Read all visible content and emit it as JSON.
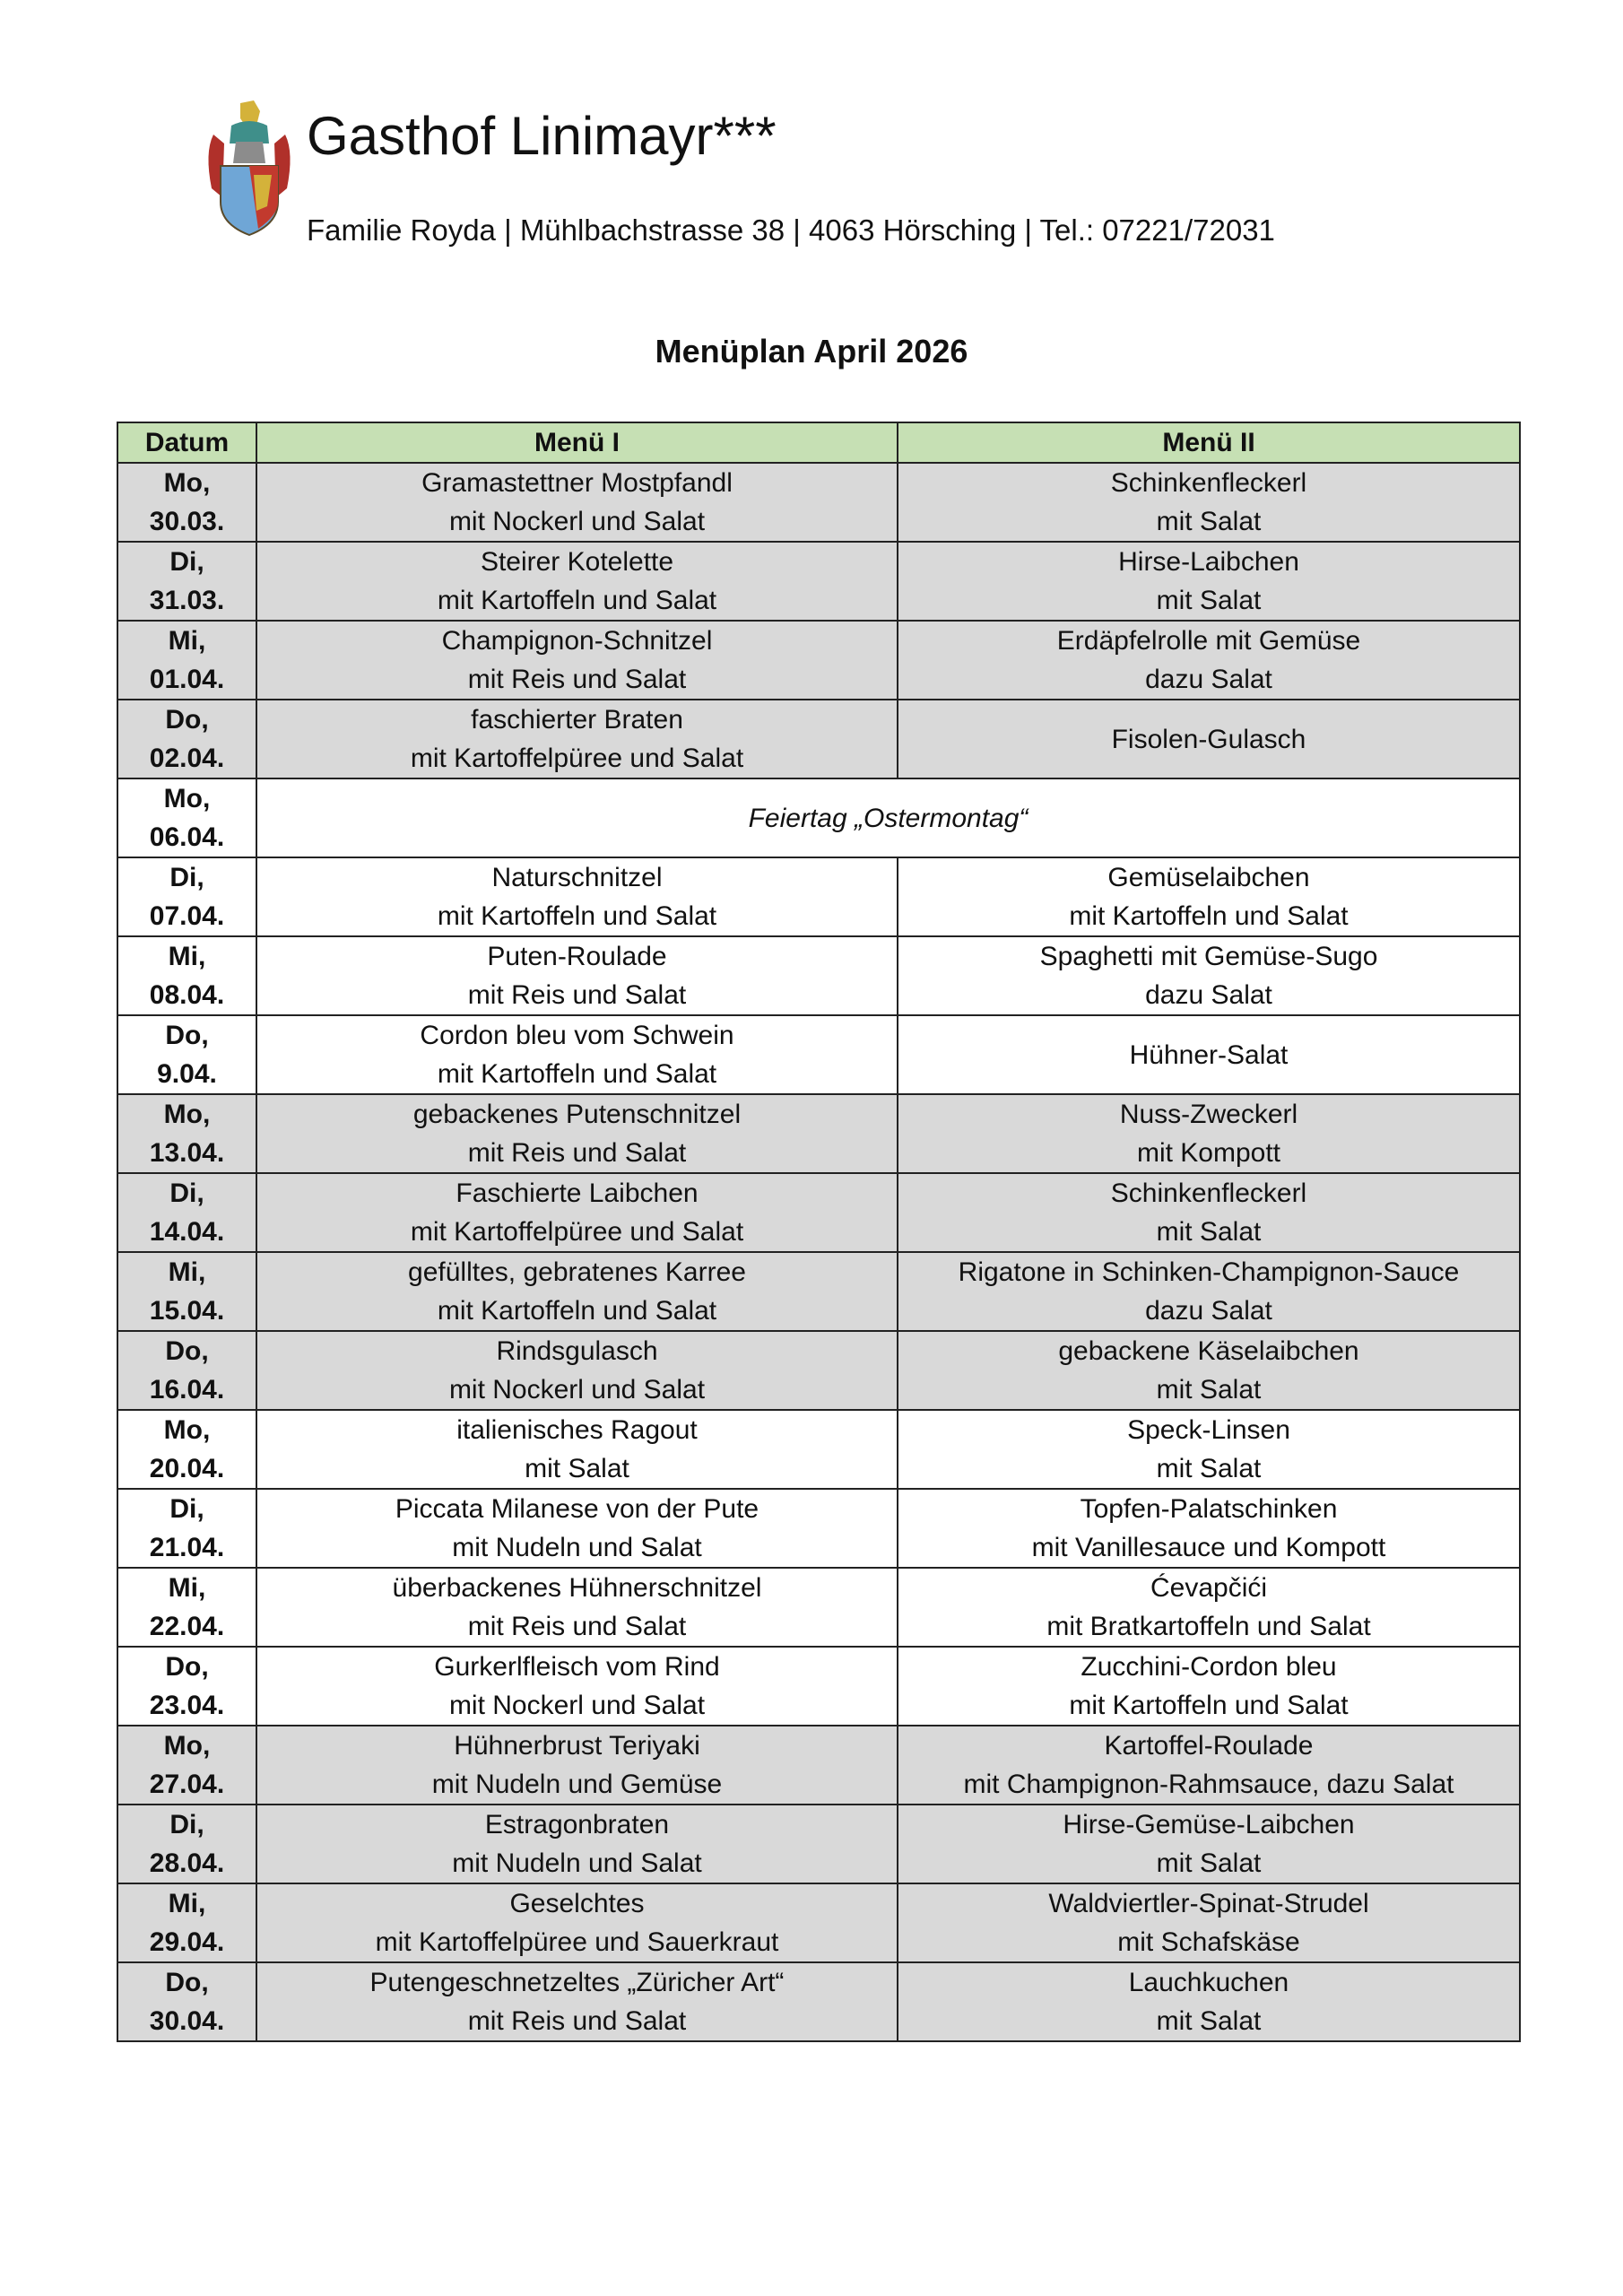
{
  "header": {
    "logo": "coat-of-arms",
    "title": "Gasthof Linimayr***",
    "subtitle": "Familie Royda | Mühlbachstrasse 38 | 4063 Hörsching | Tel.: 07221/72031"
  },
  "page_title": "Menüplan April 2026",
  "colors": {
    "header_bg": "#c6e0b4",
    "shaded_row_bg": "#d9d9d9"
  },
  "table": {
    "columns": [
      "Datum",
      "Menü I",
      "Menü II"
    ],
    "rows": [
      {
        "day": "Mo,",
        "date": "30.03.",
        "m1": [
          "Gramastettner Mostpfandl",
          "mit Nockerl und Salat"
        ],
        "m2": [
          "Schinkenfleckerl",
          "mit Salat"
        ],
        "shaded": true
      },
      {
        "day": "Di,",
        "date": "31.03.",
        "m1": [
          "Steirer Kotelette",
          "mit Kartoffeln und Salat"
        ],
        "m2": [
          "Hirse-Laibchen",
          "mit Salat"
        ],
        "shaded": true
      },
      {
        "day": "Mi,",
        "date": "01.04.",
        "m1": [
          "Champignon-Schnitzel",
          "mit Reis und Salat"
        ],
        "m2": [
          "Erdäpfelrolle mit Gemüse",
          "dazu Salat"
        ],
        "shaded": true
      },
      {
        "day": "Do,",
        "date": "02.04.",
        "m1": [
          "faschierter Braten",
          "mit Kartoffelpüree und Salat"
        ],
        "m2": [
          "Fisolen-Gulasch"
        ],
        "shaded": true
      },
      {
        "day": "Mo,",
        "date": "06.04.",
        "holiday": "Feiertag „Ostermontag“",
        "shaded": false
      },
      {
        "day": "Di,",
        "date": "07.04.",
        "m1": [
          "Naturschnitzel",
          "mit Kartoffeln und Salat"
        ],
        "m2": [
          "Gemüselaibchen",
          "mit Kartoffeln und Salat"
        ],
        "shaded": false
      },
      {
        "day": "Mi,",
        "date": "08.04.",
        "m1": [
          "Puten-Roulade",
          "mit Reis und Salat"
        ],
        "m2": [
          "Spaghetti mit Gemüse-Sugo",
          "dazu Salat"
        ],
        "shaded": false
      },
      {
        "day": "Do,",
        "date": "9.04.",
        "m1": [
          "Cordon bleu vom Schwein",
          "mit Kartoffeln und Salat"
        ],
        "m2": [
          "Hühner-Salat"
        ],
        "shaded": false
      },
      {
        "day": "Mo,",
        "date": "13.04.",
        "m1": [
          "gebackenes Putenschnitzel",
          "mit Reis und Salat"
        ],
        "m2": [
          "Nuss-Zweckerl",
          "mit Kompott"
        ],
        "shaded": true
      },
      {
        "day": "Di,",
        "date": "14.04.",
        "m1": [
          "Faschierte Laibchen",
          "mit Kartoffelpüree und Salat"
        ],
        "m2": [
          "Schinkenfleckerl",
          "mit Salat"
        ],
        "shaded": true
      },
      {
        "day": "Mi,",
        "date": "15.04.",
        "m1": [
          "gefülltes, gebratenes Karree",
          "mit Kartoffeln und Salat"
        ],
        "m2": [
          "Rigatone in Schinken-Champignon-Sauce",
          "dazu Salat"
        ],
        "shaded": true
      },
      {
        "day": "Do,",
        "date": "16.04.",
        "m1": [
          "Rindsgulasch",
          "mit Nockerl und Salat"
        ],
        "m2": [
          "gebackene Käselaibchen",
          "mit Salat"
        ],
        "shaded": true
      },
      {
        "day": "Mo,",
        "date": "20.04.",
        "m1": [
          "italienisches Ragout",
          "mit Salat"
        ],
        "m2": [
          "Speck-Linsen",
          "mit Salat"
        ],
        "shaded": false
      },
      {
        "day": "Di,",
        "date": "21.04.",
        "m1": [
          "Piccata Milanese von der Pute",
          "mit Nudeln und Salat"
        ],
        "m2": [
          "Topfen-Palatschinken",
          "mit Vanillesauce und Kompott"
        ],
        "shaded": false
      },
      {
        "day": "Mi,",
        "date": "22.04.",
        "m1": [
          "überbackenes Hühnerschnitzel",
          "mit Reis und Salat"
        ],
        "m2": [
          "Ćevapčići",
          "mit Bratkartoffeln und Salat"
        ],
        "shaded": false
      },
      {
        "day": "Do,",
        "date": "23.04.",
        "m1": [
          "Gurkerlfleisch vom Rind",
          "mit Nockerl und Salat"
        ],
        "m2": [
          "Zucchini-Cordon bleu",
          "mit Kartoffeln und Salat"
        ],
        "shaded": false
      },
      {
        "day": "Mo,",
        "date": "27.04.",
        "m1": [
          "Hühnerbrust Teriyaki",
          "mit Nudeln und Gemüse"
        ],
        "m2": [
          "Kartoffel-Roulade",
          "mit Champignon-Rahmsauce, dazu Salat"
        ],
        "shaded": true
      },
      {
        "day": "Di,",
        "date": "28.04.",
        "m1": [
          "Estragonbraten",
          "mit Nudeln und Salat"
        ],
        "m2": [
          "Hirse-Gemüse-Laibchen",
          "mit Salat"
        ],
        "shaded": true
      },
      {
        "day": "Mi,",
        "date": "29.04.",
        "m1": [
          "Geselchtes",
          "mit Kartoffelpüree und Sauerkraut"
        ],
        "m2": [
          "Waldviertler-Spinat-Strudel",
          "mit Schafskäse"
        ],
        "shaded": true
      },
      {
        "day": "Do,",
        "date": "30.04.",
        "m1": [
          "Putengeschnetzeltes „Züricher Art“",
          "mit Reis und Salat"
        ],
        "m2": [
          "Lauchkuchen",
          "mit Salat"
        ],
        "shaded": true
      }
    ]
  }
}
